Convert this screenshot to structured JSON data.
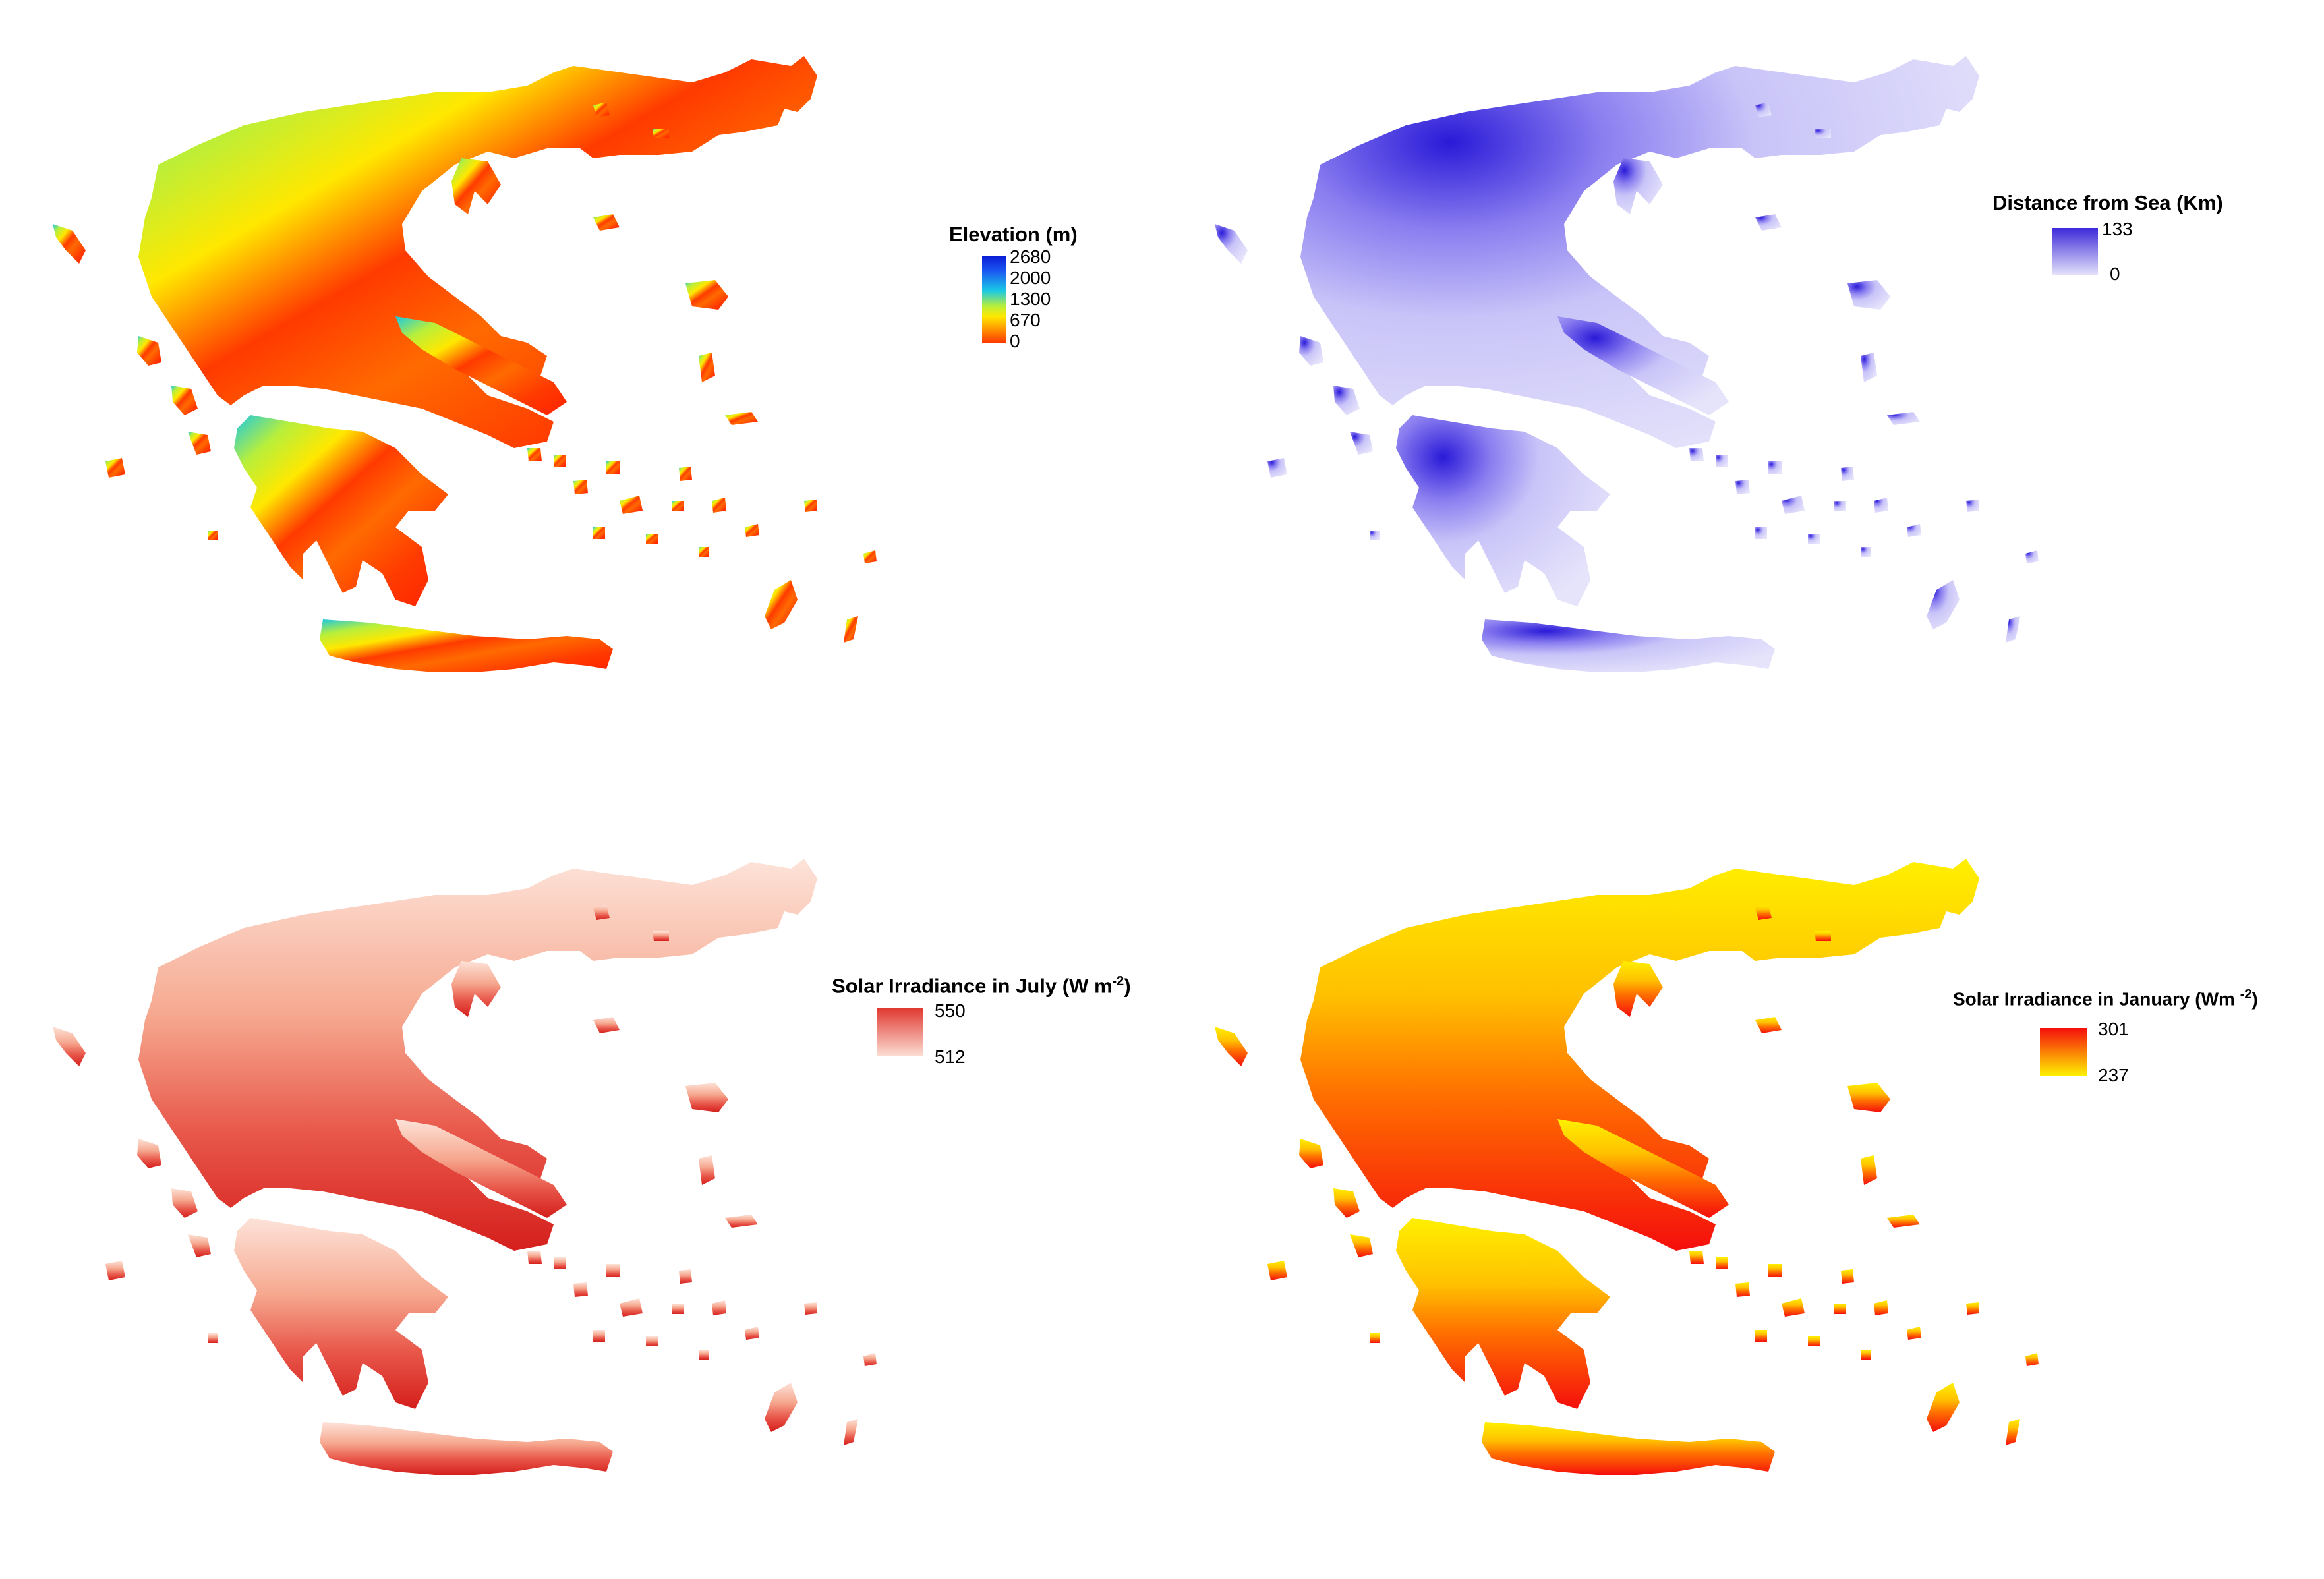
{
  "panels": [
    {
      "id": "elevation",
      "legend": {
        "title": "Elevation (m)",
        "ticks": [
          "2680",
          "2000",
          "1300",
          "670",
          "0"
        ],
        "colors": [
          "#0a1bd6",
          "#1b5af2",
          "#19c8e6",
          "#b8ef3b",
          "#ffe800",
          "#ff9800",
          "#ff3a00"
        ]
      }
    },
    {
      "id": "distance-from-sea",
      "legend": {
        "title": "Distance from Sea (Km)",
        "ticks": [
          "133",
          "0"
        ],
        "colors": [
          "#3d2ad9",
          "#e6e4fb"
        ]
      }
    },
    {
      "id": "solar-july",
      "legend": {
        "title": "Solar Irradiance in July (W m",
        "title_sup": "-2",
        "title_end": ")",
        "ticks": [
          "550",
          "512"
        ],
        "colors": [
          "#e03a32",
          "#fbdcd2"
        ]
      }
    },
    {
      "id": "solar-january",
      "legend": {
        "title": "Solar Irradiance in January (Wm ",
        "title_sup": "-2",
        "title_end": ")",
        "ticks": [
          "301",
          "237"
        ],
        "colors": [
          "#f50e0c",
          "#fff000"
        ]
      }
    }
  ]
}
